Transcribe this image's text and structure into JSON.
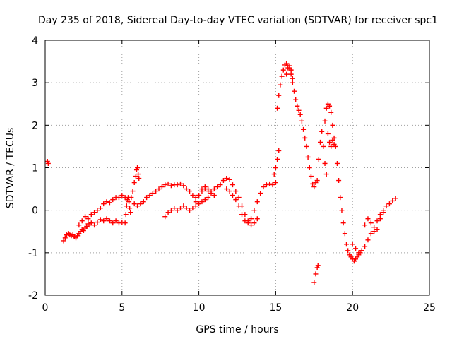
{
  "chart_data": {
    "type": "scatter",
    "title": "Day 235 of 2018, Sidereal Day-to-day VTEC variation (SDTVAR) for receiver spc1",
    "xlabel": "GPS time / hours",
    "ylabel": "SDTVAR / TECUs",
    "xlim": [
      0,
      25
    ],
    "ylim": [
      -2,
      4
    ],
    "xticks": [
      0,
      5,
      10,
      15,
      20,
      25
    ],
    "yticks": [
      -2,
      -1,
      0,
      1,
      2,
      3,
      4
    ],
    "grid": true,
    "legend": "none",
    "marker": "plus",
    "color": "#ff0000",
    "series": [
      {
        "points": [
          [
            0.15,
            1.15
          ],
          [
            0.2,
            1.1
          ],
          [
            1.2,
            -0.72
          ],
          [
            1.3,
            -0.65
          ],
          [
            1.4,
            -0.58
          ],
          [
            1.5,
            -0.55
          ],
          [
            1.6,
            -0.58
          ],
          [
            1.7,
            -0.6
          ],
          [
            1.8,
            -0.58
          ],
          [
            1.9,
            -0.62
          ],
          [
            2.0,
            -0.65
          ],
          [
            2.1,
            -0.6
          ],
          [
            2.2,
            -0.55
          ],
          [
            2.3,
            -0.5
          ],
          [
            2.4,
            -0.45
          ],
          [
            2.5,
            -0.48
          ],
          [
            2.6,
            -0.42
          ],
          [
            2.7,
            -0.38
          ],
          [
            2.8,
            -0.32
          ],
          [
            2.9,
            -0.35
          ],
          [
            3.0,
            -0.3
          ],
          [
            3.2,
            -0.35
          ],
          [
            3.4,
            -0.28
          ],
          [
            3.6,
            -0.22
          ],
          [
            3.8,
            -0.25
          ],
          [
            4.0,
            -0.2
          ],
          [
            4.2,
            -0.25
          ],
          [
            4.4,
            -0.3
          ],
          [
            4.6,
            -0.25
          ],
          [
            4.8,
            -0.3
          ],
          [
            5.0,
            -0.28
          ],
          [
            2.2,
            -0.35
          ],
          [
            2.4,
            -0.25
          ],
          [
            2.6,
            -0.15
          ],
          [
            2.8,
            -0.2
          ],
          [
            3.0,
            -0.1
          ],
          [
            3.2,
            -0.05
          ],
          [
            3.4,
            0.0
          ],
          [
            3.6,
            0.05
          ],
          [
            3.8,
            0.15
          ],
          [
            4.0,
            0.2
          ],
          [
            4.2,
            0.18
          ],
          [
            4.4,
            0.25
          ],
          [
            4.6,
            0.3
          ],
          [
            4.8,
            0.3
          ],
          [
            5.0,
            0.35
          ],
          [
            5.2,
            0.3
          ],
          [
            5.2,
            -0.3
          ],
          [
            5.25,
            -0.1
          ],
          [
            5.3,
            0.1
          ],
          [
            5.35,
            0.25
          ],
          [
            5.4,
            0.3
          ],
          [
            5.45,
            0.2
          ],
          [
            5.5,
            0.05
          ],
          [
            5.55,
            -0.05
          ],
          [
            5.6,
            0.3
          ],
          [
            5.7,
            0.45
          ],
          [
            5.8,
            0.65
          ],
          [
            5.9,
            0.8
          ],
          [
            5.95,
            0.95
          ],
          [
            6.0,
            1.0
          ],
          [
            6.05,
            0.85
          ],
          [
            6.1,
            0.75
          ],
          [
            5.8,
            0.15
          ],
          [
            6.0,
            0.1
          ],
          [
            6.2,
            0.15
          ],
          [
            6.4,
            0.2
          ],
          [
            6.6,
            0.3
          ],
          [
            6.8,
            0.35
          ],
          [
            7.0,
            0.4
          ],
          [
            7.2,
            0.45
          ],
          [
            7.4,
            0.5
          ],
          [
            7.6,
            0.55
          ],
          [
            7.8,
            0.6
          ],
          [
            8.0,
            0.62
          ],
          [
            8.2,
            0.58
          ],
          [
            8.4,
            0.6
          ],
          [
            8.6,
            0.6
          ],
          [
            8.8,
            0.62
          ],
          [
            9.0,
            0.58
          ],
          [
            9.2,
            0.5
          ],
          [
            9.4,
            0.45
          ],
          [
            9.6,
            0.35
          ],
          [
            9.8,
            0.3
          ],
          [
            10.0,
            0.35
          ],
          [
            10.2,
            0.45
          ],
          [
            10.4,
            0.5
          ],
          [
            10.6,
            0.45
          ],
          [
            10.8,
            0.4
          ],
          [
            11.0,
            0.35
          ],
          [
            7.8,
            -0.15
          ],
          [
            8.0,
            -0.05
          ],
          [
            8.2,
            0.0
          ],
          [
            8.4,
            0.05
          ],
          [
            8.6,
            0.0
          ],
          [
            8.8,
            0.05
          ],
          [
            9.0,
            0.1
          ],
          [
            9.2,
            0.05
          ],
          [
            9.4,
            0.0
          ],
          [
            9.6,
            0.05
          ],
          [
            9.8,
            0.1
          ],
          [
            10.0,
            0.15
          ],
          [
            10.2,
            0.2
          ],
          [
            10.4,
            0.25
          ],
          [
            10.6,
            0.3
          ],
          [
            9.8,
            0.2
          ],
          [
            10.0,
            0.35
          ],
          [
            10.2,
            0.5
          ],
          [
            10.4,
            0.55
          ],
          [
            10.6,
            0.5
          ],
          [
            10.8,
            0.45
          ],
          [
            11.0,
            0.5
          ],
          [
            11.2,
            0.55
          ],
          [
            11.4,
            0.6
          ],
          [
            11.6,
            0.7
          ],
          [
            11.8,
            0.75
          ],
          [
            12.0,
            0.72
          ],
          [
            12.2,
            0.6
          ],
          [
            12.4,
            0.45
          ],
          [
            12.6,
            0.3
          ],
          [
            12.8,
            0.1
          ],
          [
            13.0,
            -0.1
          ],
          [
            13.2,
            -0.25
          ],
          [
            13.4,
            -0.35
          ],
          [
            13.6,
            -0.3
          ],
          [
            13.8,
            -0.2
          ],
          [
            11.8,
            0.5
          ],
          [
            12.0,
            0.45
          ],
          [
            12.2,
            0.35
          ],
          [
            12.4,
            0.25
          ],
          [
            12.6,
            0.1
          ],
          [
            12.8,
            -0.1
          ],
          [
            13.0,
            -0.25
          ],
          [
            13.2,
            -0.3
          ],
          [
            13.4,
            -0.2
          ],
          [
            13.6,
            0.0
          ],
          [
            13.8,
            0.2
          ],
          [
            14.0,
            0.4
          ],
          [
            14.2,
            0.55
          ],
          [
            14.4,
            0.6
          ],
          [
            14.6,
            0.62
          ],
          [
            14.8,
            0.6
          ],
          [
            15.0,
            0.65
          ],
          [
            14.9,
            0.85
          ],
          [
            15.0,
            1.0
          ],
          [
            15.1,
            1.2
          ],
          [
            15.2,
            1.4
          ],
          [
            15.1,
            2.4
          ],
          [
            15.2,
            2.7
          ],
          [
            15.3,
            2.95
          ],
          [
            15.4,
            3.15
          ],
          [
            15.5,
            3.3
          ],
          [
            15.6,
            3.42
          ],
          [
            15.7,
            3.45
          ],
          [
            15.8,
            3.4
          ],
          [
            15.9,
            3.35
          ],
          [
            16.0,
            3.2
          ],
          [
            16.1,
            3.0
          ],
          [
            16.2,
            2.8
          ],
          [
            16.3,
            2.6
          ],
          [
            16.4,
            2.45
          ],
          [
            16.5,
            2.35
          ],
          [
            16.6,
            2.25
          ],
          [
            16.7,
            2.1
          ],
          [
            16.8,
            1.9
          ],
          [
            16.9,
            1.7
          ],
          [
            17.0,
            1.5
          ],
          [
            17.1,
            1.25
          ],
          [
            17.2,
            1.0
          ],
          [
            17.3,
            0.8
          ],
          [
            17.4,
            0.62
          ],
          [
            17.5,
            0.55
          ],
          [
            17.6,
            0.65
          ],
          [
            17.7,
            0.7
          ],
          [
            15.7,
            3.2
          ],
          [
            15.8,
            3.35
          ],
          [
            15.9,
            3.4
          ],
          [
            16.0,
            3.3
          ],
          [
            16.1,
            3.1
          ],
          [
            17.5,
            -1.7
          ],
          [
            17.6,
            -1.5
          ],
          [
            17.7,
            -1.35
          ],
          [
            17.75,
            -1.3
          ],
          [
            17.8,
            1.2
          ],
          [
            17.9,
            1.6
          ],
          [
            18.0,
            1.85
          ],
          [
            18.1,
            1.5
          ],
          [
            18.2,
            1.1
          ],
          [
            18.3,
            0.85
          ],
          [
            18.2,
            2.1
          ],
          [
            18.3,
            2.4
          ],
          [
            18.4,
            2.5
          ],
          [
            18.5,
            2.45
          ],
          [
            18.6,
            2.3
          ],
          [
            18.7,
            2.0
          ],
          [
            18.8,
            1.7
          ],
          [
            18.9,
            1.5
          ],
          [
            19.0,
            1.1
          ],
          [
            19.1,
            0.7
          ],
          [
            19.2,
            0.3
          ],
          [
            19.3,
            0.0
          ],
          [
            19.4,
            -0.3
          ],
          [
            19.5,
            -0.55
          ],
          [
            19.6,
            -0.8
          ],
          [
            19.7,
            -0.95
          ],
          [
            19.8,
            -1.05
          ],
          [
            19.9,
            -1.1
          ],
          [
            20.0,
            -1.15
          ],
          [
            20.1,
            -1.2
          ],
          [
            20.2,
            -1.15
          ],
          [
            20.3,
            -1.1
          ],
          [
            20.4,
            -1.05
          ],
          [
            20.5,
            -1.0
          ],
          [
            20.6,
            -0.95
          ],
          [
            18.4,
            1.8
          ],
          [
            18.5,
            1.6
          ],
          [
            18.6,
            1.5
          ],
          [
            18.7,
            1.65
          ],
          [
            18.8,
            1.55
          ],
          [
            20.0,
            -0.8
          ],
          [
            20.2,
            -0.9
          ],
          [
            20.4,
            -1.0
          ],
          [
            20.6,
            -0.95
          ],
          [
            20.8,
            -0.85
          ],
          [
            21.0,
            -0.7
          ],
          [
            21.2,
            -0.55
          ],
          [
            21.4,
            -0.4
          ],
          [
            21.6,
            -0.25
          ],
          [
            21.8,
            -0.1
          ],
          [
            22.0,
            0.0
          ],
          [
            22.2,
            0.1
          ],
          [
            22.4,
            0.15
          ],
          [
            22.6,
            0.22
          ],
          [
            22.8,
            0.28
          ],
          [
            20.8,
            -0.35
          ],
          [
            21.0,
            -0.2
          ],
          [
            21.2,
            -0.3
          ],
          [
            21.4,
            -0.5
          ],
          [
            21.6,
            -0.45
          ],
          [
            21.8,
            -0.2
          ],
          [
            22.0,
            -0.05
          ]
        ]
      }
    ]
  }
}
